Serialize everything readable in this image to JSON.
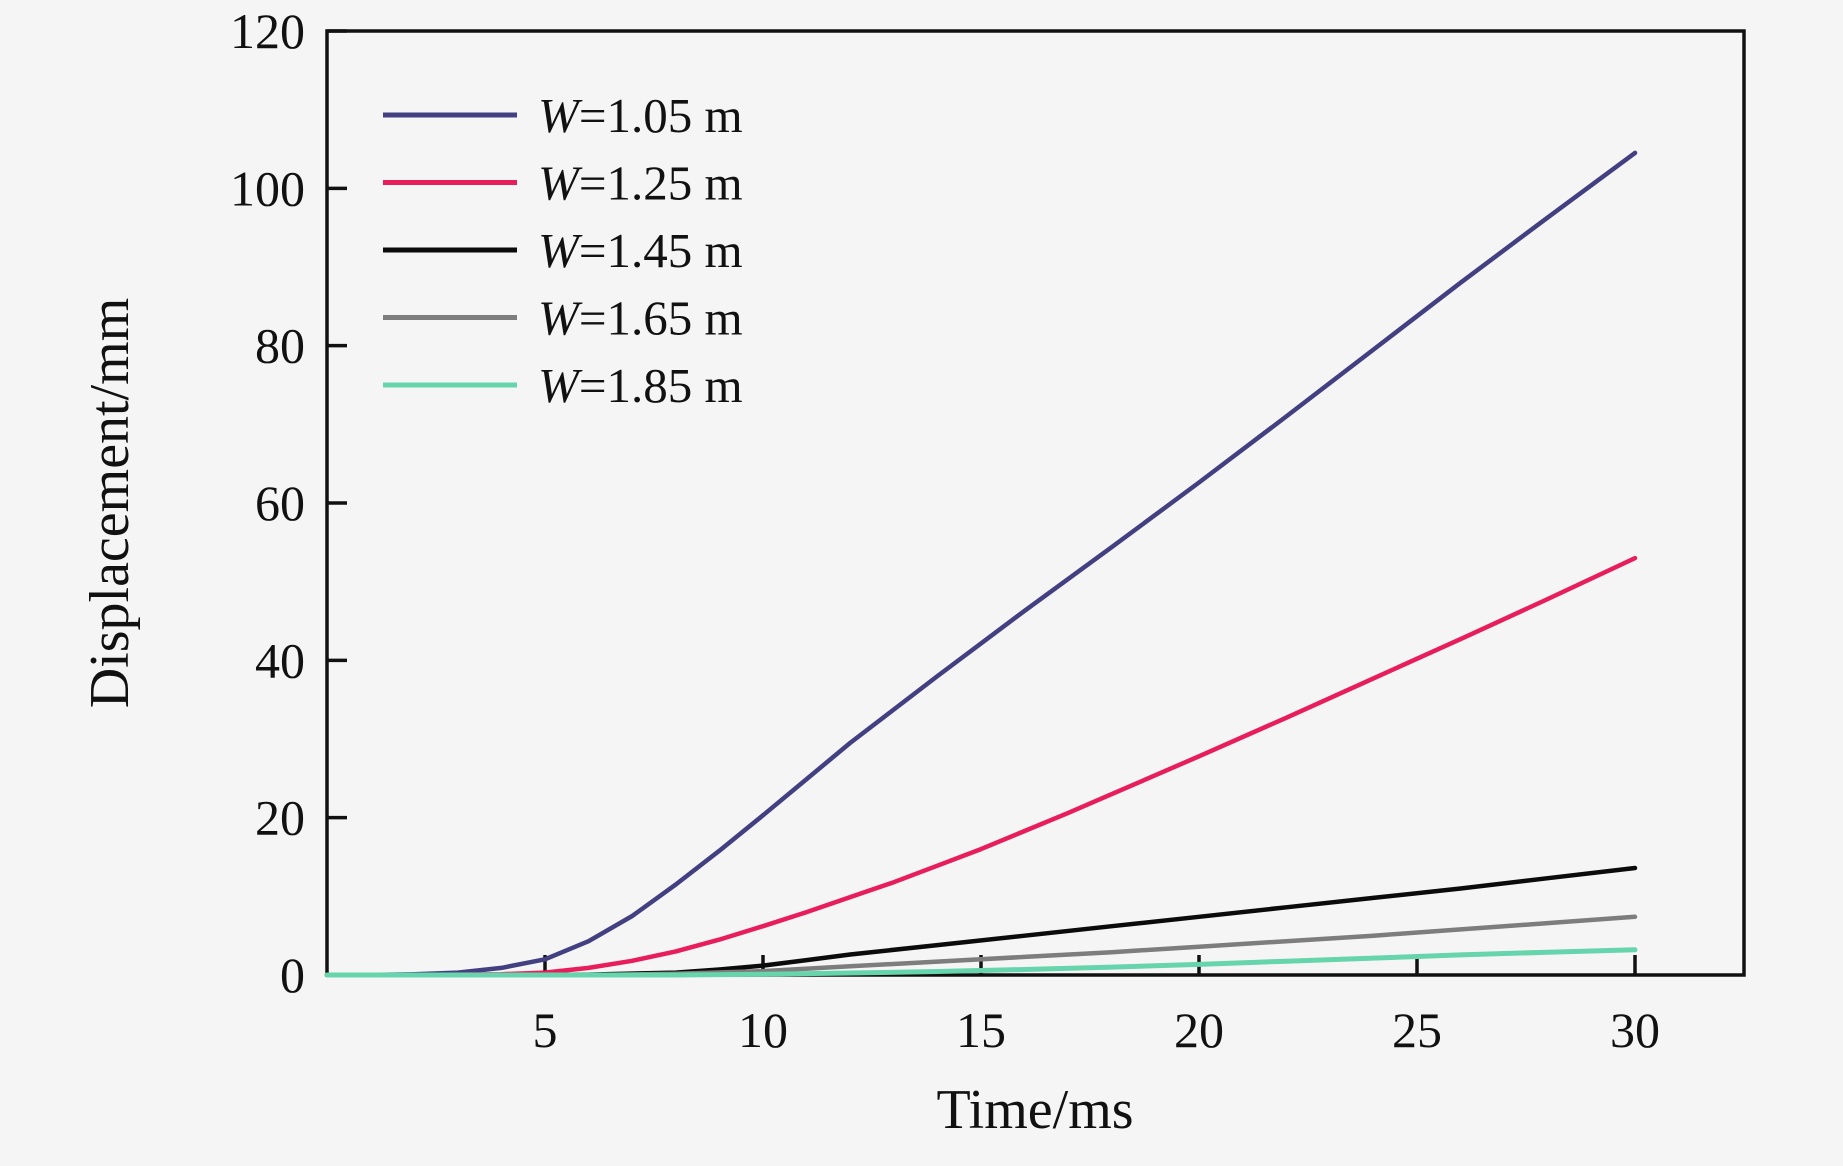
{
  "chart_data": {
    "type": "line",
    "title": "",
    "xlabel": "Time/ms",
    "ylabel": "Displacement/mm",
    "xlim": [
      0,
      32.5
    ],
    "ylim": [
      0,
      120
    ],
    "xticks": [
      5,
      10,
      15,
      20,
      25,
      30
    ],
    "yticks": [
      0,
      20,
      40,
      60,
      80,
      100,
      120
    ],
    "grid": false,
    "legend_position": "upper-left-inside",
    "axis_color": "#111111",
    "background_color": "#f6f5f6",
    "series": [
      {
        "name": "W=1.05 m",
        "color": "#434082",
        "x": [
          0,
          1,
          2,
          3,
          4,
          5,
          6,
          7,
          8,
          9,
          10,
          11,
          12,
          14,
          16,
          18,
          20,
          22,
          24,
          26,
          28,
          30
        ],
        "y": [
          0,
          0,
          0.1,
          0.3,
          0.9,
          2,
          4.3,
          7.5,
          11.5,
          15.8,
          20.3,
          24.9,
          29.5,
          38,
          46.3,
          54.4,
          62.6,
          71,
          79.5,
          88,
          96.3,
          104.5
        ]
      },
      {
        "name": "W=1.25 m",
        "color": "#e81e5c",
        "x": [
          0,
          2,
          4,
          5,
          6,
          7,
          8,
          9,
          10,
          11,
          12,
          13,
          14,
          15,
          16,
          17,
          18,
          20,
          22,
          24,
          26,
          28,
          30
        ],
        "y": [
          0,
          0,
          0.1,
          0.3,
          0.9,
          1.8,
          3,
          4.5,
          6.2,
          8,
          9.9,
          11.8,
          13.9,
          16,
          18.3,
          20.6,
          23,
          27.8,
          32.7,
          37.7,
          42.7,
          47.8,
          53
        ]
      },
      {
        "name": "W=1.45 m",
        "color": "#0b0b0b",
        "x": [
          0,
          4,
          6,
          8,
          9,
          10,
          11,
          12,
          14,
          16,
          18,
          20,
          22,
          24,
          26,
          28,
          30
        ],
        "y": [
          0,
          0,
          0.05,
          0.3,
          0.7,
          1.2,
          1.9,
          2.6,
          3.8,
          5,
          6.2,
          7.4,
          8.6,
          9.8,
          11,
          12.3,
          13.6
        ]
      },
      {
        "name": "W=1.65 m",
        "color": "#7d7d7d",
        "x": [
          0,
          6,
          8,
          10,
          12,
          14,
          16,
          18,
          20,
          22,
          24,
          26,
          28,
          30
        ],
        "y": [
          0,
          0,
          0.15,
          0.5,
          1.1,
          1.7,
          2.3,
          2.9,
          3.6,
          4.3,
          5,
          5.8,
          6.6,
          7.4
        ]
      },
      {
        "name": "W=1.85 m",
        "color": "#66d4ac",
        "x": [
          0,
          8,
          10,
          12,
          14,
          16,
          18,
          20,
          22,
          24,
          26,
          28,
          30
        ],
        "y": [
          0,
          0,
          0.1,
          0.25,
          0.45,
          0.7,
          1,
          1.35,
          1.75,
          2.15,
          2.55,
          2.9,
          3.2
        ]
      }
    ]
  }
}
